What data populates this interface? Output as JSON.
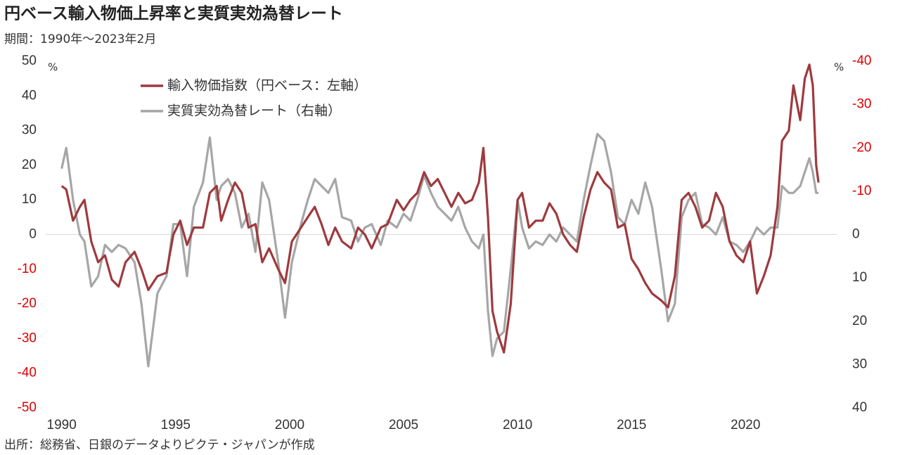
{
  "chart_data": {
    "type": "line",
    "title": "円ベース輸入物価上昇率と実質実効為替レート",
    "subtitle": "期間：1990年～2023年2月",
    "source": "出所：総務省、日銀のデータよりピクテ・ジャパンが作成",
    "y_unit": "%",
    "y2_unit": "%",
    "xlim": [
      1989.3,
      2024.0
    ],
    "xticks": [
      1990,
      1995,
      2000,
      2005,
      2010,
      2015,
      2020
    ],
    "ylim": [
      -50,
      50
    ],
    "yticks": [
      50,
      40,
      30,
      20,
      10,
      0,
      -10,
      -20,
      -30,
      -40,
      -50
    ],
    "y2lim": [
      -40,
      40
    ],
    "y2_inverted": true,
    "y2ticks": [
      -40,
      -30,
      -20,
      -10,
      0,
      10,
      20,
      30,
      40
    ],
    "negative_tick_color": "#e00000",
    "tick_color": "#333333",
    "zero_line": true,
    "x": [
      1990.0,
      1990.2,
      1990.5,
      1990.8,
      1991.0,
      1991.3,
      1991.6,
      1991.9,
      1992.2,
      1992.5,
      1992.8,
      1993.2,
      1993.5,
      1993.8,
      1994.2,
      1994.6,
      1994.9,
      1995.2,
      1995.5,
      1995.8,
      1996.2,
      1996.5,
      1996.8,
      1997.0,
      1997.3,
      1997.6,
      1997.9,
      1998.2,
      1998.5,
      1998.8,
      1999.1,
      1999.5,
      1999.8,
      2000.1,
      2000.5,
      2000.8,
      2001.1,
      2001.4,
      2001.7,
      2002.0,
      2002.3,
      2002.7,
      2003.0,
      2003.3,
      2003.6,
      2004.0,
      2004.3,
      2004.7,
      2005.0,
      2005.3,
      2005.6,
      2005.9,
      2006.2,
      2006.5,
      2006.8,
      2007.1,
      2007.4,
      2007.7,
      2008.0,
      2008.3,
      2008.5,
      2008.7,
      2008.9,
      2009.1,
      2009.4,
      2009.7,
      2010.0,
      2010.2,
      2010.5,
      2010.8,
      2011.1,
      2011.4,
      2011.7,
      2012.0,
      2012.3,
      2012.6,
      2012.9,
      2013.2,
      2013.5,
      2013.8,
      2014.1,
      2014.4,
      2014.7,
      2015.0,
      2015.3,
      2015.6,
      2015.9,
      2016.3,
      2016.6,
      2016.9,
      2017.2,
      2017.5,
      2017.8,
      2018.1,
      2018.4,
      2018.7,
      2019.0,
      2019.3,
      2019.6,
      2019.9,
      2020.2,
      2020.5,
      2020.8,
      2021.1,
      2021.4,
      2021.6,
      2021.9,
      2022.1,
      2022.4,
      2022.6,
      2022.8,
      2022.95,
      2023.1,
      2023.2
    ],
    "series": [
      {
        "name": "輸入物価指数（円ベース：左軸）",
        "color": "#9e3a3e",
        "values": [
          14,
          13,
          4,
          8,
          10,
          -2,
          -8,
          -6,
          -13,
          -15,
          -8,
          -5,
          -10,
          -16,
          -12,
          -11,
          0,
          4,
          -3,
          2,
          2,
          12,
          14,
          4,
          10,
          15,
          12,
          2,
          3,
          -8,
          -4,
          -10,
          -14,
          -2,
          2,
          5,
          8,
          3,
          -3,
          2,
          -2,
          -4,
          2,
          0,
          -4,
          2,
          3,
          10,
          7,
          10,
          12,
          18,
          14,
          16,
          12,
          8,
          12,
          9,
          10,
          15,
          25,
          5,
          -22,
          -28,
          -34,
          -20,
          10,
          12,
          2,
          4,
          4,
          9,
          6,
          0,
          -3,
          -5,
          5,
          13,
          18,
          15,
          13,
          2,
          3,
          -7,
          -10,
          -14,
          -17,
          -19,
          -21,
          -12,
          10,
          12,
          8,
          2,
          4,
          12,
          8,
          -2,
          -6,
          -8,
          -2,
          -17,
          -12,
          -6,
          8,
          27,
          30,
          43,
          33,
          45,
          49,
          43,
          20,
          15
        ]
      },
      {
        "name": "実質実効為替レート（右軸）",
        "color": "#a6a6a6",
        "axis": "y2",
        "values": [
          -15.2,
          -20,
          -8,
          0,
          1.6,
          12,
          9.6,
          2.4,
          4,
          2.4,
          3.2,
          6.4,
          16,
          30.4,
          13.6,
          9.6,
          -2.4,
          -2.4,
          9.6,
          -6.4,
          -12,
          -22.4,
          -8,
          -11.2,
          -12.8,
          -9.6,
          -1.6,
          -4.8,
          4,
          -12,
          -8,
          6.4,
          19.2,
          6.4,
          -2.4,
          -8,
          -12.8,
          -11.2,
          -9.6,
          -12.8,
          -4,
          -3.2,
          1.6,
          -1.6,
          -2.4,
          2.4,
          -3.2,
          -1.6,
          -4.8,
          -3.2,
          -8,
          -13.6,
          -9.6,
          -6.4,
          -4.8,
          -3.2,
          -6.4,
          -1.6,
          1.6,
          3.2,
          0,
          17.6,
          28,
          24,
          22.4,
          8,
          -8,
          -1.6,
          3.2,
          1.6,
          2.4,
          0,
          1.6,
          -1.6,
          0,
          1.6,
          -8,
          -16,
          -23.2,
          -21.6,
          -14.4,
          -4,
          -2.4,
          -8,
          -4.8,
          -12,
          -6.4,
          8,
          20,
          16,
          -4,
          -8,
          -9.6,
          -2.4,
          -1.6,
          0,
          -4,
          1.6,
          2.4,
          4,
          1.6,
          -1.6,
          0,
          -1.6,
          -1.6,
          -11.2,
          -9.6,
          -9.6,
          -11.2,
          -14.4,
          -17.6,
          -14.4,
          -9.6,
          -9.6
        ]
      }
    ]
  }
}
